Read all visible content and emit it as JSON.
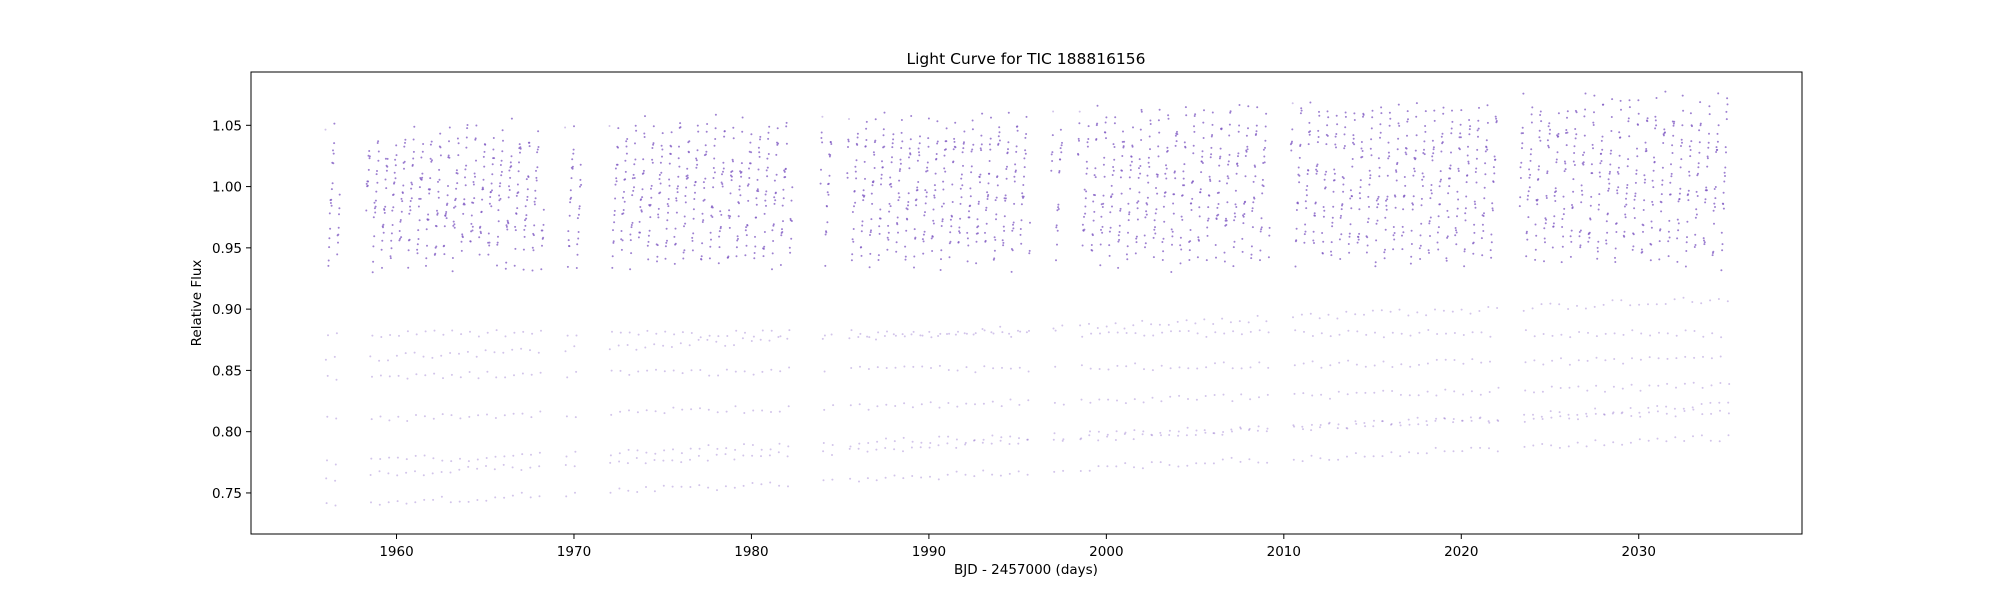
{
  "chart_data": {
    "type": "scatter",
    "title": "Light Curve for TIC 188816156",
    "xlabel": "BJD - 2457000 (days)",
    "ylabel": "Relative Flux",
    "xlim": [
      1951.8,
      2039.2
    ],
    "ylim": [
      0.7165,
      1.0935
    ],
    "xticks": [
      1960,
      1970,
      1980,
      1990,
      2000,
      2010,
      2020,
      2030
    ],
    "xtick_labels": [
      "1960",
      "1970",
      "1980",
      "1990",
      "2000",
      "2010",
      "2020",
      "2030"
    ],
    "yticks": [
      0.75,
      0.8,
      0.85,
      0.9,
      0.95,
      1.0,
      1.05
    ],
    "ytick_labels": [
      "0.75",
      "0.80",
      "0.85",
      "0.90",
      "0.95",
      "1.00",
      "1.05"
    ],
    "grid": false,
    "legend": "none",
    "marker_color": "#7e57c2",
    "observed_segments": [
      {
        "start": 1956.0,
        "end": 1956.8
      },
      {
        "start": 1958.3,
        "end": 1968.3
      },
      {
        "start": 1969.5,
        "end": 1970.4
      },
      {
        "start": 1972.0,
        "end": 1982.3
      },
      {
        "start": 1983.9,
        "end": 1984.6
      },
      {
        "start": 1985.4,
        "end": 1995.7
      },
      {
        "start": 1996.9,
        "end": 1997.6
      },
      {
        "start": 1998.4,
        "end": 2009.2
      },
      {
        "start": 2010.4,
        "end": 2022.1
      },
      {
        "start": 2023.3,
        "end": 2035.1
      }
    ],
    "period_days": 0.5,
    "flux_max_approx": [
      1.045,
      1.077
    ],
    "flux_min_approx": [
      0.722,
      0.785
    ],
    "dense_band": [
      0.88,
      1.05
    ]
  }
}
